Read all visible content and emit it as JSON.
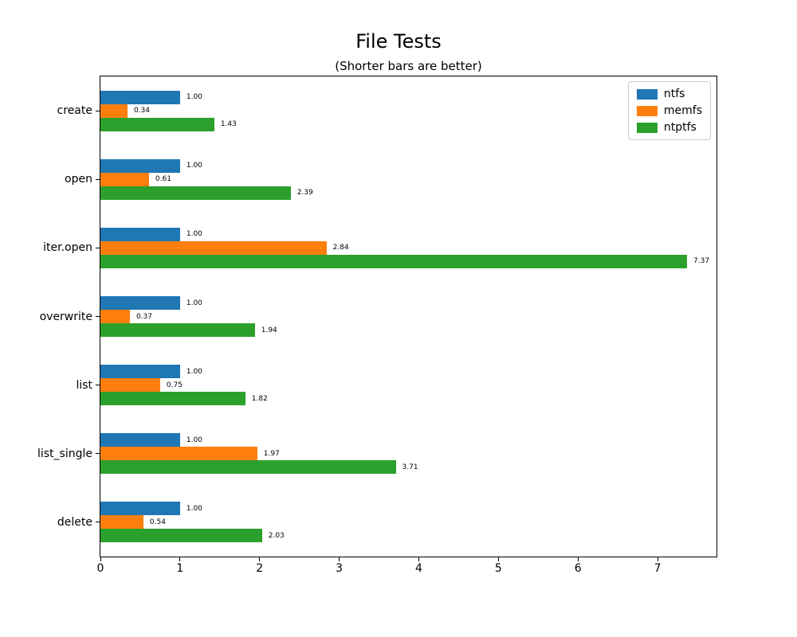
{
  "figure": {
    "title": "File Tests",
    "subtitle": "(Shorter bars are better)"
  },
  "chart_data": {
    "type": "bar",
    "orientation": "horizontal",
    "title": "File Tests",
    "subtitle": "(Shorter bars are better)",
    "categories": [
      "create",
      "open",
      "iter.open",
      "overwrite",
      "list",
      "list_single",
      "delete"
    ],
    "series": [
      {
        "name": "ntfs",
        "color": "#1f77b4",
        "values": [
          1.0,
          1.0,
          1.0,
          1.0,
          1.0,
          1.0,
          1.0
        ]
      },
      {
        "name": "memfs",
        "color": "#ff7f0e",
        "values": [
          0.34,
          0.61,
          2.84,
          0.37,
          0.75,
          1.97,
          0.54
        ]
      },
      {
        "name": "ntptfs",
        "color": "#2ca02c",
        "values": [
          1.43,
          2.39,
          7.37,
          1.94,
          1.82,
          3.71,
          2.03
        ]
      }
    ],
    "value_labels": [
      [
        "1.00",
        "1.00",
        "1.00",
        "1.00",
        "1.00",
        "1.00",
        "1.00"
      ],
      [
        "0.34",
        "0.61",
        "2.84",
        "0.37",
        "0.75",
        "1.97",
        "0.54"
      ],
      [
        "1.43",
        "2.39",
        "7.37",
        "1.94",
        "1.82",
        "3.71",
        "2.03"
      ]
    ],
    "xticks": [
      "0",
      "1",
      "2",
      "3",
      "4",
      "5",
      "6",
      "7"
    ],
    "xlim": [
      0,
      7.74
    ],
    "xlabel": "",
    "ylabel": "",
    "grid": false,
    "legend_position": "upper right"
  }
}
